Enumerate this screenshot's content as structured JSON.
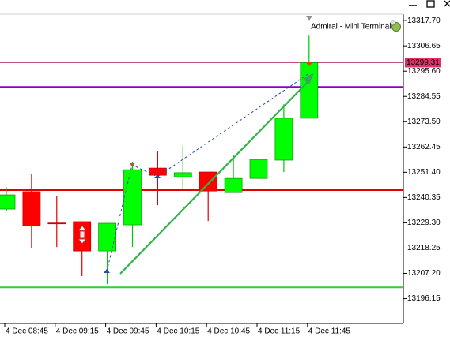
{
  "chart_data": {
    "type": "candlestick",
    "terminal_label": "Admiral - Mini Terminal",
    "categories": [
      "4 Dec 08:45",
      null,
      "4 Dec 09:15",
      null,
      "4 Dec 09:45",
      null,
      "4 Dec 10:15",
      null,
      "4 Dec 10:45",
      null,
      "4 Dec 11:15",
      null,
      "4 Dec 11:45"
    ],
    "open": [
      13235.3,
      13242.9,
      13229.2,
      13229.8,
      13217.0,
      13228.4,
      13253.2,
      13249.4,
      13251.5,
      13242.5,
      13248.7,
      13256.7,
      13275.0
    ],
    "high": [
      13244.9,
      13250.5,
      13241.1,
      13229.8,
      13229.1,
      13256.0,
      13260.8,
      13263.2,
      13251.5,
      13259.1,
      13257.0,
      13281.1,
      13311.1
    ],
    "low": [
      13234.3,
      13218.4,
      13218.7,
      13206.0,
      13202.5,
      13218.7,
      13237.0,
      13244.2,
      13230.1,
      13242.5,
      13248.7,
      13251.5,
      13275.0
    ],
    "close": [
      13241.5,
      13228.0,
      13228.9,
      13217.0,
      13229.1,
      13252.5,
      13250.1,
      13251.2,
      13243.2,
      13248.7,
      13257.0,
      13275.0,
      13299.31
    ],
    "up_color": "#00ff00",
    "down_color": "#ff0000",
    "ylim": [
      13185.3,
      13320.5
    ],
    "yticks": [
      {
        "value": 13317.7,
        "label": "13317.70"
      },
      13306.65,
      {
        "value": 13295.6,
        "label": "13295.60"
      },
      13284.55,
      {
        "value": 13273.5,
        "label": "13273.50"
      },
      13262.45,
      {
        "value": 13251.4,
        "label": "13251.40"
      },
      13240.35,
      {
        "value": 13229.3,
        "label": "13229.30"
      },
      13218.25,
      {
        "value": 13207.2,
        "label": "13207.20"
      },
      13196.15
    ],
    "hlines": [
      {
        "value": 13299.31,
        "color": "#c0508a"
      },
      {
        "value": 13288.7,
        "color": "#8b00c8"
      },
      {
        "value": 13243.6,
        "color": "#e00000"
      },
      {
        "value": 13201.1,
        "color": "#33cc33"
      }
    ]
  }
}
